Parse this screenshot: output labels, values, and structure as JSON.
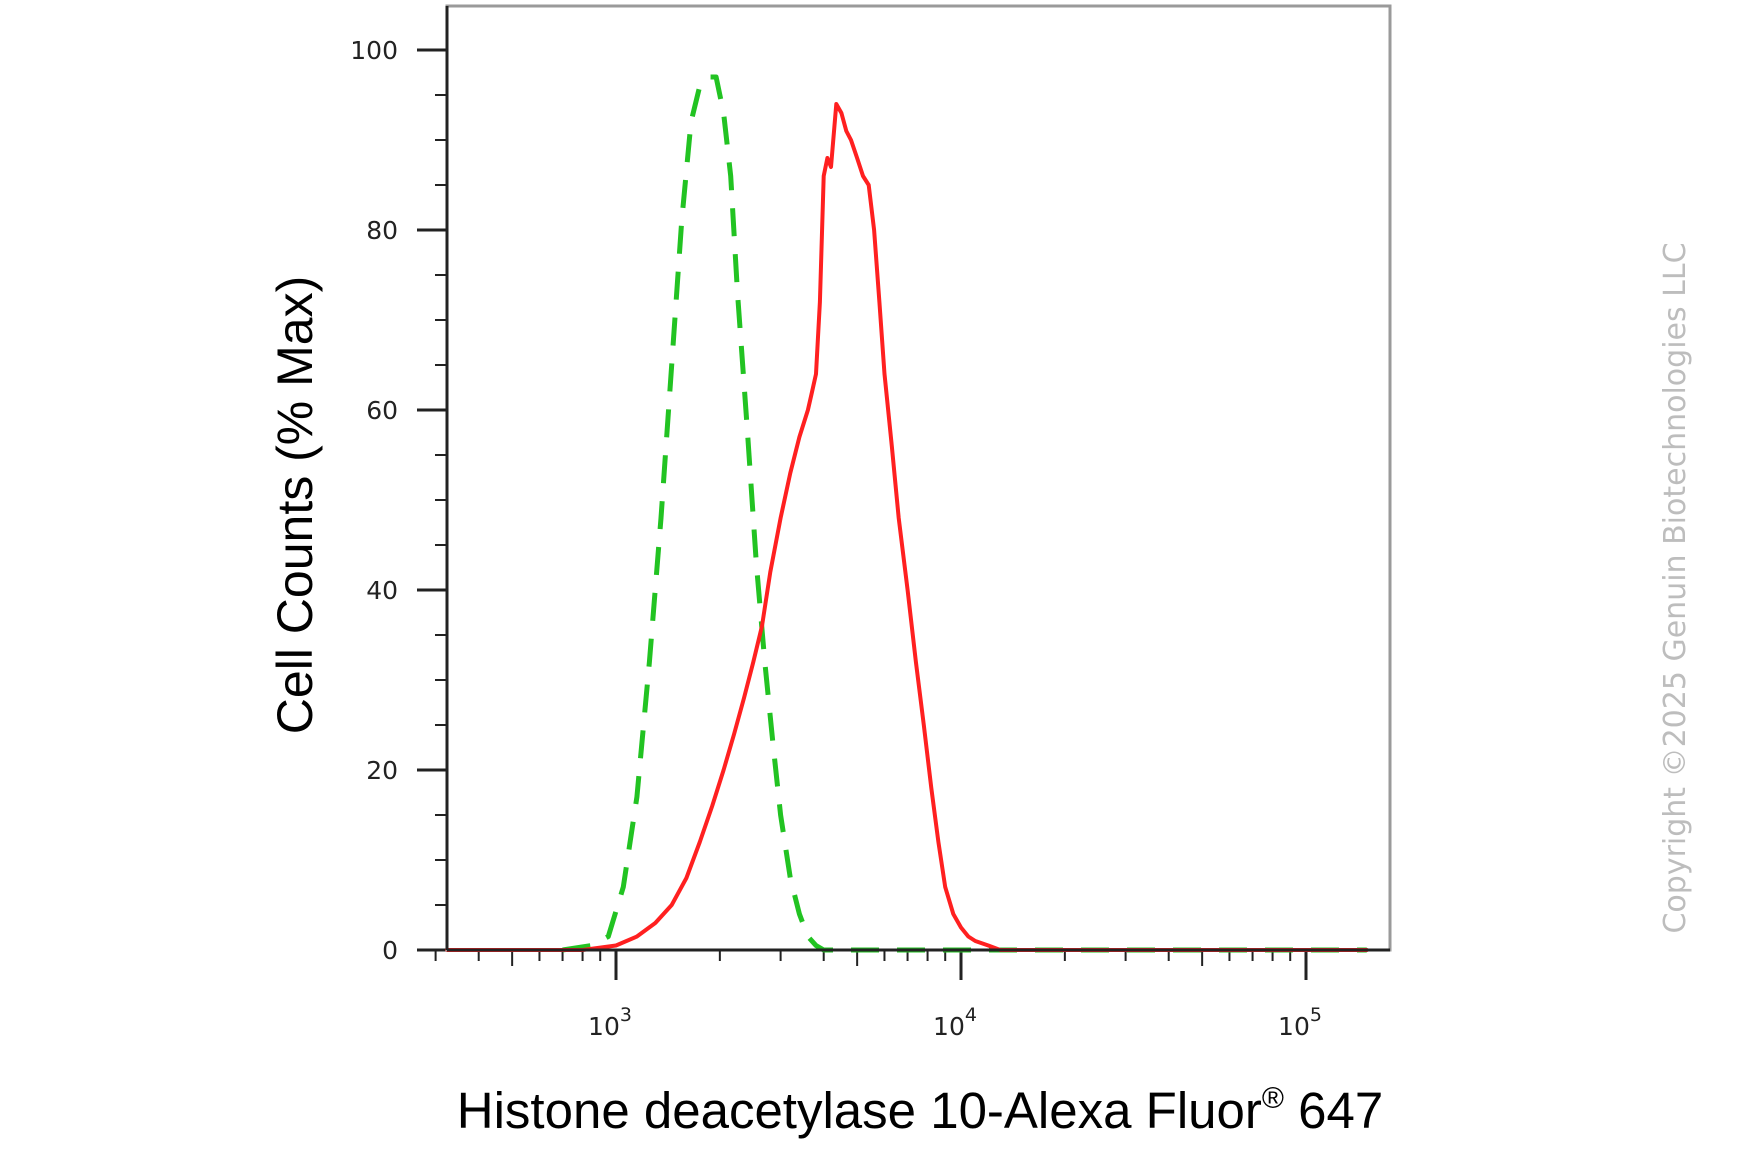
{
  "chart_data": {
    "type": "line",
    "title": "",
    "xlabel": "Histone deacetylase 10-Alexa Fluor",
    "xlabel_superscript": "®",
    "xlabel_suffix": " 647",
    "ylabel": "Cell Counts (% Max)",
    "x_scale": "log",
    "xlim": [
      250,
      150000
    ],
    "ylim": [
      0,
      105
    ],
    "yticks": [
      0,
      20,
      40,
      60,
      80,
      100
    ],
    "xticks": [
      {
        "value": 1000,
        "base": "10",
        "exp": "3"
      },
      {
        "value": 10000,
        "base": "10",
        "exp": "4"
      },
      {
        "value": 100000,
        "base": "10",
        "exp": "5"
      }
    ],
    "grid": false,
    "legend": "none",
    "series": [
      {
        "style": "dashed",
        "color": "#22c322",
        "x": [
          700,
          850,
          950,
          1050,
          1150,
          1250,
          1350,
          1450,
          1550,
          1650,
          1750,
          1850,
          1950,
          2050,
          2150,
          2250,
          2400,
          2550,
          2700,
          2850,
          3000,
          3200,
          3400,
          3600,
          3800,
          4000,
          4500,
          6000,
          10000,
          20000,
          100000,
          150000
        ],
        "y": [
          0,
          0.5,
          1.5,
          7,
          17,
          32,
          48,
          65,
          81,
          92,
          96,
          97,
          97,
          93,
          86,
          73,
          58,
          43,
          32,
          23,
          15,
          8,
          4,
          1.5,
          0.5,
          0,
          0,
          0,
          0,
          0,
          0,
          0
        ]
      },
      {
        "style": "solid",
        "color": "#ff2020",
        "x": [
          250,
          800,
          1000,
          1150,
          1300,
          1450,
          1600,
          1750,
          1900,
          2050,
          2200,
          2350,
          2500,
          2650,
          2800,
          3000,
          3200,
          3400,
          3600,
          3700,
          3800,
          3900,
          4000,
          4100,
          4200,
          4350,
          4500,
          4650,
          4800,
          5000,
          5200,
          5400,
          5600,
          5800,
          6000,
          6300,
          6600,
          7000,
          7400,
          7800,
          8200,
          8600,
          9000,
          9500,
          10000,
          10500,
          11000,
          12000,
          13000,
          14000,
          20000,
          150000
        ],
        "y": [
          0,
          0,
          0.5,
          1.5,
          3,
          5,
          8,
          12,
          16,
          20,
          24,
          28,
          32,
          36,
          42,
          48,
          53,
          57,
          60,
          62,
          64,
          72,
          86,
          88,
          87,
          94,
          93,
          91,
          90,
          88,
          86,
          85,
          80,
          72,
          64,
          56,
          48,
          40,
          32,
          25,
          18,
          12,
          7,
          4,
          2.5,
          1.5,
          1,
          0.5,
          0,
          0,
          0,
          0
        ]
      }
    ]
  },
  "watermark": "Copyright ©2025 Genuin Biotechnologies LLC"
}
